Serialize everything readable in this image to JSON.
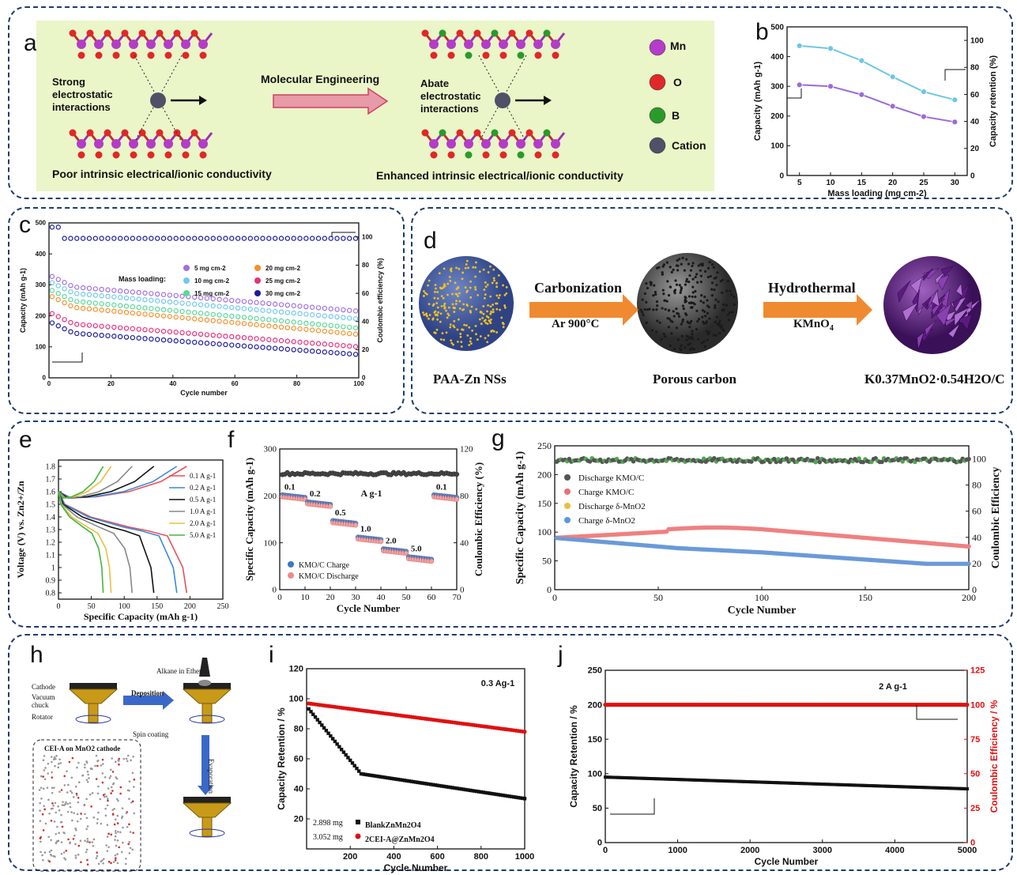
{
  "panel_letters": [
    "a",
    "b",
    "c",
    "d",
    "e",
    "f",
    "g",
    "h",
    "i",
    "j"
  ],
  "panel_a": {
    "left_text": "Strong\nelectrostatic\ninteractions",
    "left_caption": "Poor intrinsic electrical/ionic conductivity",
    "arrow_text": "Molecular Engineering",
    "right_text": "Abate\nelectrostatic\ninteractions",
    "right_caption": "Enhanced intrinsic electrical/ionic conductivity",
    "legend": [
      {
        "label": "Mn",
        "color": "#b43cc8"
      },
      {
        "label": "O",
        "color": "#e02828"
      },
      {
        "label": "B",
        "color": "#2a9a2a"
      },
      {
        "label": "Cation",
        "color": "#505066"
      }
    ]
  },
  "panel_d": {
    "step1_label": "PAA-Zn NSs",
    "arrow1_top": "Carbonization",
    "arrow1_bottom": "Ar  900°C",
    "step2_label": "Porous carbon",
    "arrow2_top": "Hydrothermal",
    "arrow2_bottom": "KMnO",
    "arrow2_bottom_sub": "4",
    "step3_label": "K0.37MnO2·0.54H2O/C"
  },
  "panel_h": {
    "labels": [
      "Cathode",
      "Vacuum chuck",
      "Rotator",
      "Deposition",
      "Spin coating",
      "Alkane in Ether",
      "Evaporation",
      "CEI-A on MnO2 cathode"
    ]
  },
  "chart_data": [
    {
      "id": "b",
      "type": "line",
      "xlabel": "Mass loading (mg cm-2)",
      "ylabel": "Capacity (mAh g-1)",
      "y2label": "Capacity retention (%)",
      "xlim": [
        3,
        32
      ],
      "ylim": [
        0,
        500
      ],
      "y2lim": [
        0,
        110
      ],
      "xticks": [
        5,
        10,
        15,
        20,
        25,
        30
      ],
      "yticks": [
        0,
        100,
        200,
        300,
        400,
        500
      ],
      "y2ticks": [
        0,
        20,
        40,
        60,
        80,
        100
      ],
      "series": [
        {
          "axis": "y",
          "color": "#9b6ad8",
          "x": [
            5,
            10,
            15,
            20,
            25,
            30
          ],
          "values": [
            305,
            300,
            272,
            233,
            198,
            180
          ]
        },
        {
          "axis": "y2",
          "color": "#6cc6e8",
          "x": [
            5,
            10,
            15,
            20,
            25,
            30
          ],
          "values": [
            96,
            94,
            85,
            73,
            62,
            56
          ]
        }
      ]
    },
    {
      "id": "c",
      "type": "scatter",
      "xlabel": "Cycle number",
      "ylabel": "Capacity (mAh g-1)",
      "y2label": "Coulombic efficiency (%)",
      "xlim": [
        0,
        100
      ],
      "ylim": [
        0,
        500
      ],
      "y2lim": [
        0,
        110
      ],
      "xticks": [
        0,
        20,
        40,
        60,
        80,
        100
      ],
      "yticks": [
        0,
        100,
        200,
        300,
        400,
        500
      ],
      "y2ticks": [
        0,
        20,
        40,
        60,
        80,
        100
      ],
      "legend_title": "Mass loading:",
      "series": [
        {
          "name": "5 mg cm-2",
          "color": "#a070e0",
          "start": 300,
          "end": 215
        },
        {
          "name": "10 mg cm-2",
          "color": "#70c8ec",
          "start": 280,
          "end": 190
        },
        {
          "name": "15 mg cm-2",
          "color": "#58d89a",
          "start": 255,
          "end": 160
        },
        {
          "name": "20 mg cm-2",
          "color": "#f4902a",
          "start": 235,
          "end": 140
        },
        {
          "name": "25 mg cm-2",
          "color": "#e8307a",
          "start": 180,
          "end": 100
        },
        {
          "name": "30 mg cm-2",
          "color": "#1a1aa0",
          "start": 150,
          "end": 75
        }
      ],
      "ce": 99
    },
    {
      "id": "e",
      "type": "line",
      "xlabel": "Specific Capacity (mAh g-1)",
      "ylabel": "Voltage (V) vs. Zn2+/Zn",
      "xlim": [
        0,
        250
      ],
      "ylim": [
        0.75,
        1.85
      ],
      "xticks": [
        0,
        50,
        100,
        150,
        200,
        250
      ],
      "yticks": [
        0.8,
        0.9,
        1.0,
        1.1,
        1.2,
        1.3,
        1.4,
        1.5,
        1.6,
        1.7,
        1.8
      ],
      "series": [
        {
          "name": "0.1 A g-1",
          "color": "#e8505a",
          "cap": 195
        },
        {
          "name": "0.2 A g-1",
          "color": "#3a8ad8",
          "cap": 180
        },
        {
          "name": "0.5 A g-1",
          "color": "#111111",
          "cap": 145
        },
        {
          "name": "1.0 A g-1",
          "color": "#888888",
          "cap": 112
        },
        {
          "name": "2.0 A g-1",
          "color": "#e8c040",
          "cap": 80
        },
        {
          "name": "5.0 A g-1",
          "color": "#40b840",
          "cap": 68
        }
      ]
    },
    {
      "id": "f",
      "type": "scatter",
      "xlabel": "Cycle Number",
      "ylabel": "Specific Capacity (mAh g-1)",
      "y2label": "Coulombic Efficiency (%)",
      "xlim": [
        0,
        70
      ],
      "ylim": [
        0,
        300
      ],
      "y2lim": [
        0,
        120
      ],
      "xticks": [
        0,
        10,
        20,
        30,
        40,
        50,
        60,
        70
      ],
      "yticks": [
        0,
        100,
        200,
        300
      ],
      "y2ticks": [
        0,
        40,
        80,
        120
      ],
      "rates": [
        {
          "label": "0.1",
          "cap": 200
        },
        {
          "label": "0.2",
          "cap": 185
        },
        {
          "label": "0.5",
          "cap": 145
        },
        {
          "label": "1.0",
          "cap": 110
        },
        {
          "label": "2.0",
          "cap": 85
        },
        {
          "label": "5.0",
          "cap": 68
        },
        {
          "label": "0.1",
          "cap": 200
        }
      ],
      "unit_label": "A g-1",
      "series": [
        {
          "name": "KMO/C  Charge",
          "color": "#3a78c8"
        },
        {
          "name": "KMO/C  Discharge",
          "color": "#f08a8a"
        }
      ],
      "ce": 99
    },
    {
      "id": "g",
      "type": "scatter",
      "xlabel": "Cycle Number",
      "ylabel": "Specific Capacity (mAh g-1)",
      "y2label": "Coulombic Efficiency",
      "xlim": [
        0,
        200
      ],
      "ylim": [
        0,
        250
      ],
      "y2lim": [
        0,
        110
      ],
      "xticks": [
        0,
        50,
        100,
        150,
        200
      ],
      "yticks": [
        0,
        50,
        100,
        150,
        200,
        250
      ],
      "y2ticks": [
        0,
        20,
        40,
        60,
        80,
        100
      ],
      "series": [
        {
          "name": "Discharge KMO/C",
          "color": "#555555"
        },
        {
          "name": "Charge   KMO/C",
          "color": "#e87070"
        },
        {
          "name": "Discharge δ-MnO2",
          "color": "#e8c040"
        },
        {
          "name": "Charge   δ-MnO2",
          "color": "#5a9ad8"
        }
      ]
    },
    {
      "id": "i",
      "type": "scatter",
      "xlabel": "Cycle Number",
      "ylabel": "Capacity Retention / %",
      "xlim": [
        0,
        1000
      ],
      "ylim": [
        0,
        120
      ],
      "xticks": [
        200,
        400,
        600,
        800,
        1000
      ],
      "yticks": [
        20,
        40,
        60,
        80,
        100,
        120
      ],
      "annotation": "0.3 Ag-1",
      "series": [
        {
          "name": "BlankZnMn2O4",
          "mass": "2.898 mg",
          "color": "#111111"
        },
        {
          "name": "2CEI-A@ZnMn2O4",
          "mass": "3.052 mg",
          "color": "#e01010"
        }
      ]
    },
    {
      "id": "j",
      "type": "scatter",
      "xlabel": "Cycle Number",
      "ylabel": "Capacity Retention / %",
      "y2label": "Coulombic Efficiency / %",
      "xlim": [
        0,
        5000
      ],
      "ylim": [
        0,
        250
      ],
      "y2lim": [
        0,
        125
      ],
      "xticks": [
        0,
        1000,
        2000,
        3000,
        4000,
        5000
      ],
      "yticks": [
        0,
        50,
        100,
        150,
        200,
        250
      ],
      "y2ticks": [
        0,
        25,
        50,
        75,
        100,
        125
      ],
      "annotation": "2 A g-1",
      "series": [
        {
          "name": "Capacity Retention",
          "color": "#111111",
          "start": 95,
          "end": 78
        },
        {
          "name": "Coulombic Efficiency",
          "color": "#e01010",
          "value": 100
        }
      ]
    }
  ]
}
